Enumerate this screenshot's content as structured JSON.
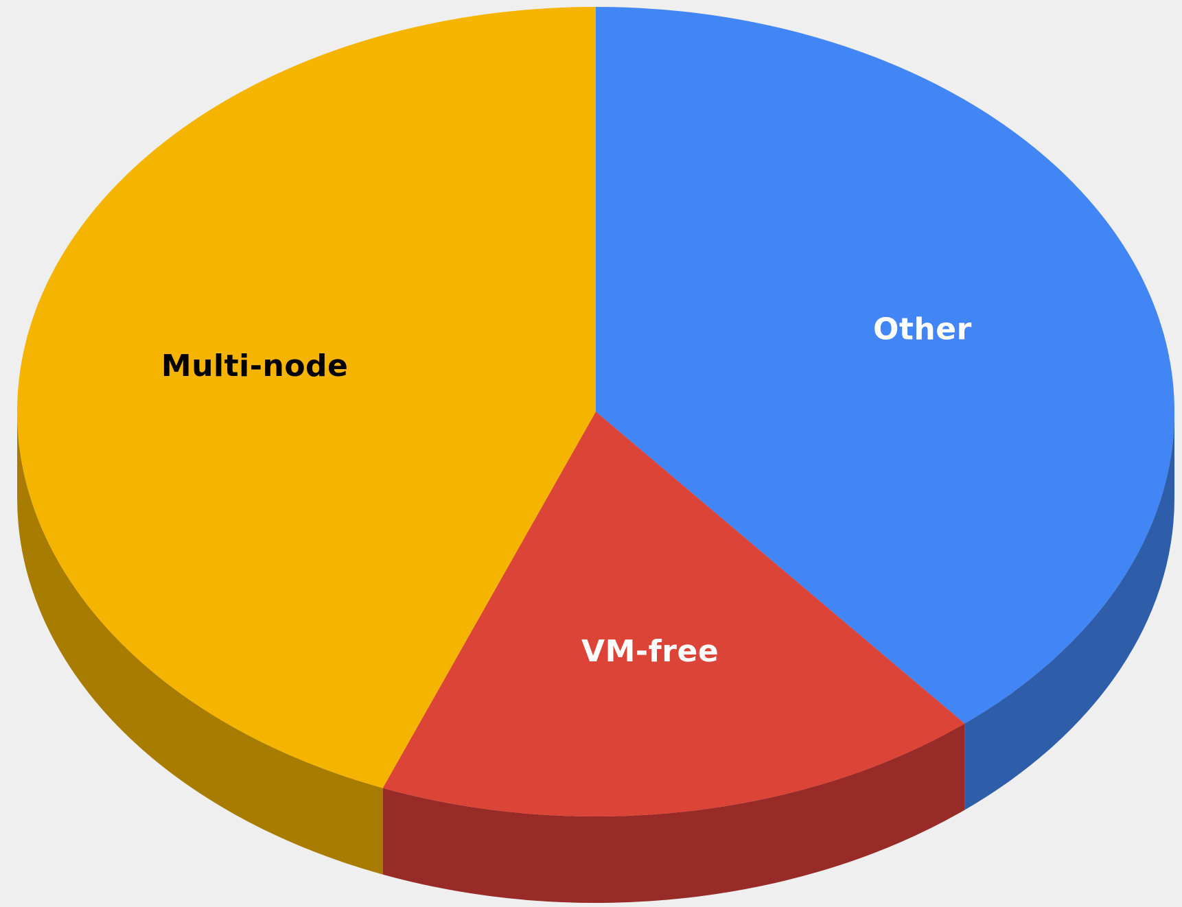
{
  "chart_data": {
    "type": "pie",
    "style": "3d",
    "slices": [
      {
        "label": "Other",
        "value": 39,
        "color": "#4285f4",
        "side_color": "#2e5da9",
        "label_color": "#ffffff"
      },
      {
        "label": "VM-free",
        "value": 17,
        "color": "#db4437",
        "side_color": "#982b27",
        "label_color": "#ffffff"
      },
      {
        "label": "Multi-node",
        "value": 44,
        "color": "#f4b400",
        "side_color": "#a77c00",
        "label_color": "#000000"
      }
    ],
    "legend": "none"
  }
}
